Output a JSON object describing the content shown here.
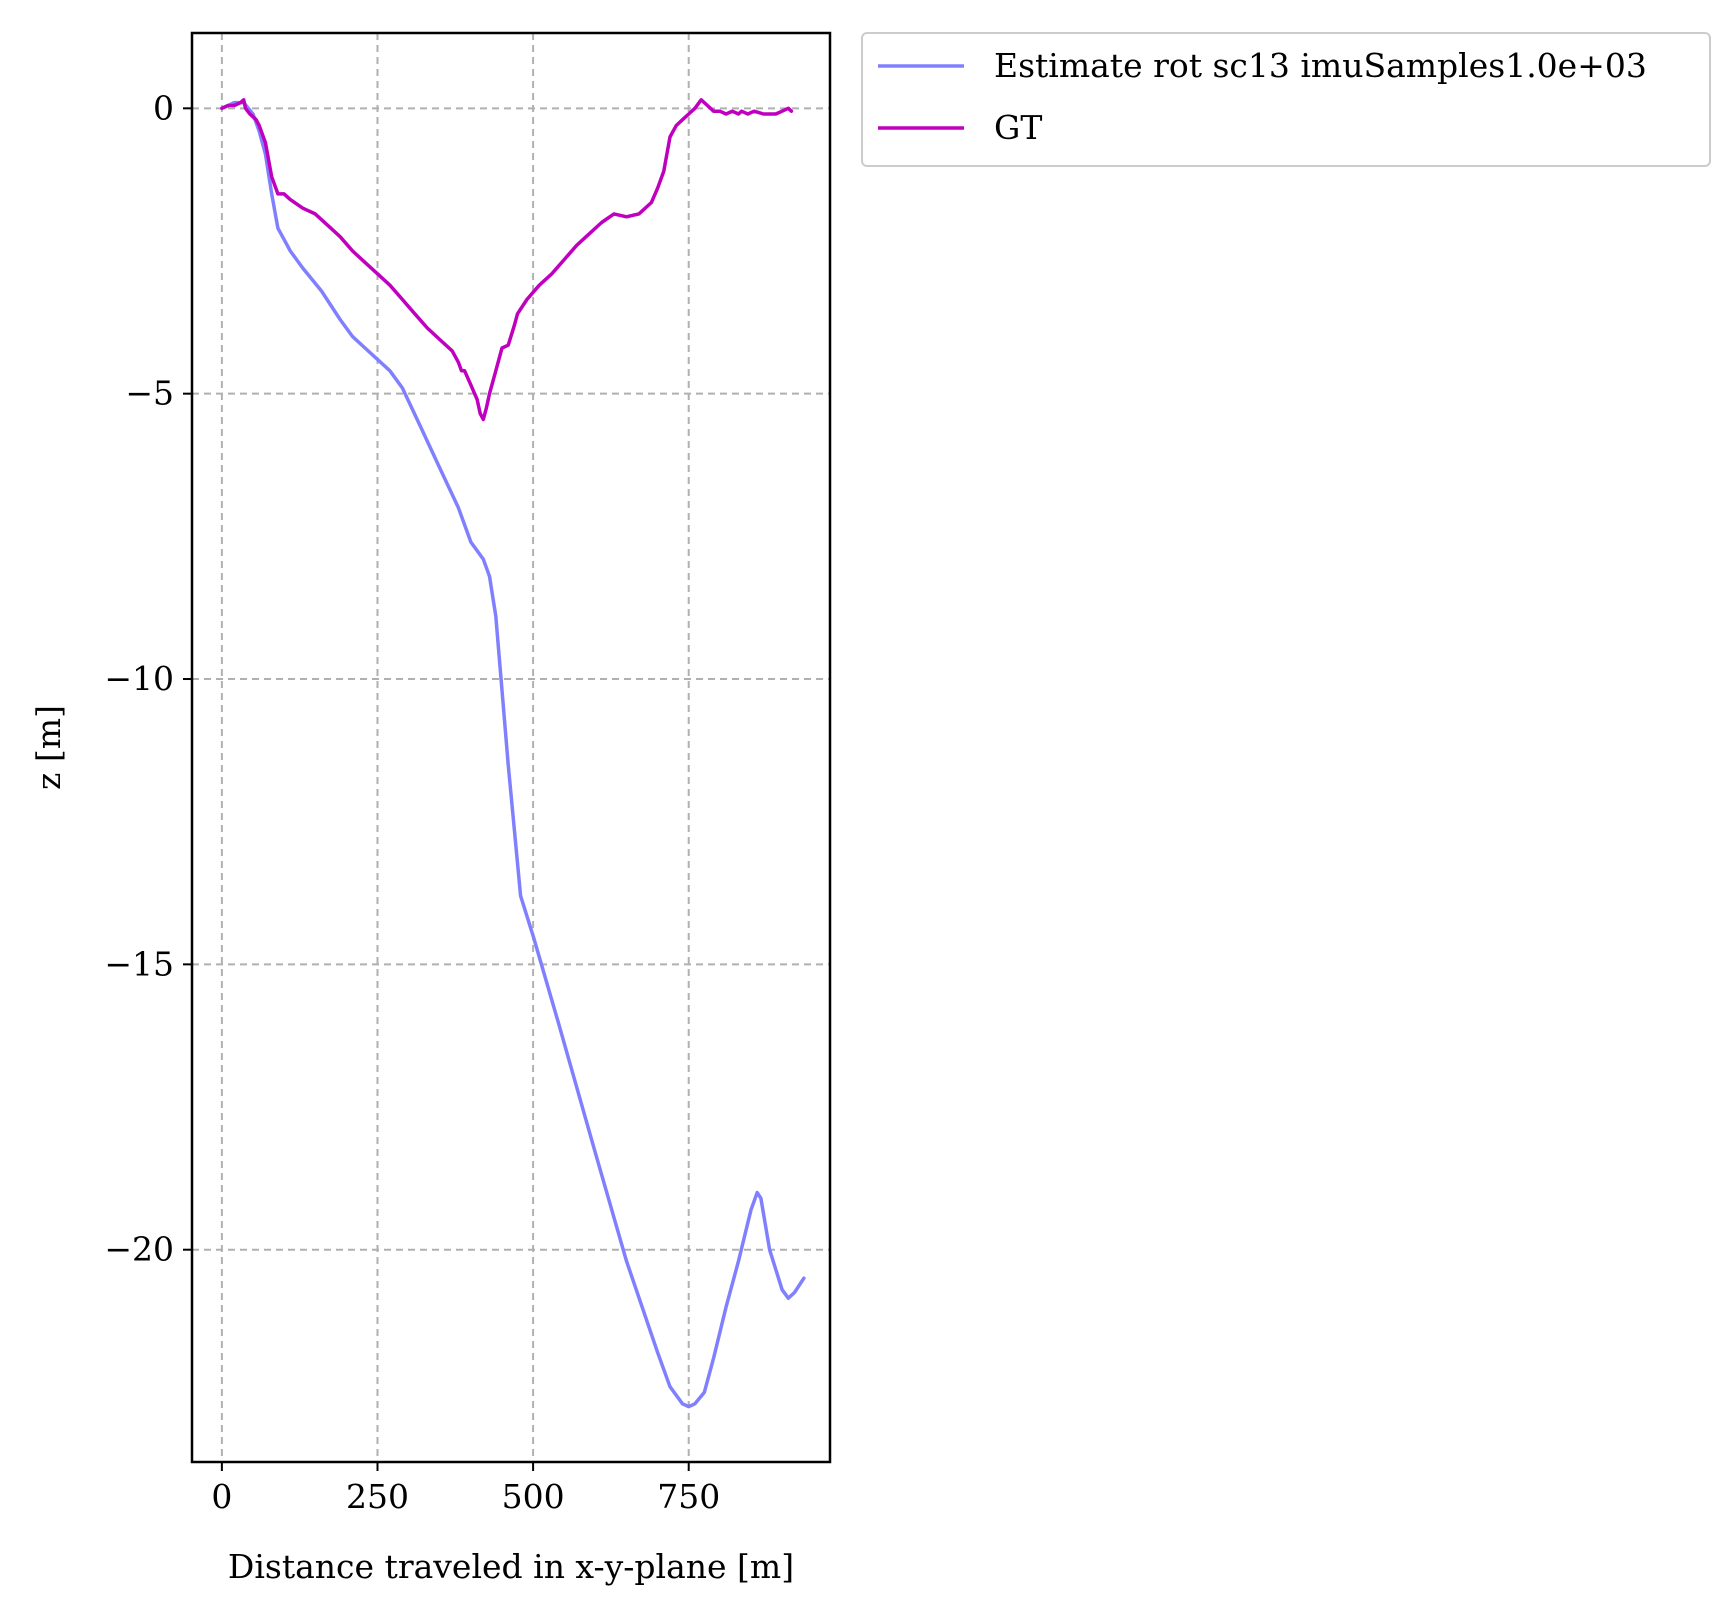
{
  "chart_data": {
    "type": "line",
    "title": "",
    "xlabel": "Distance traveled in x-y-plane [m]",
    "ylabel": "z [m]",
    "xlim": [
      -48,
      977
    ],
    "ylim": [
      -23.72,
      1.32
    ],
    "xticks": [
      0,
      250,
      500,
      750
    ],
    "xtick_labels": [
      "0",
      "250",
      "500",
      "750"
    ],
    "yticks": [
      0,
      -5,
      -10,
      -15,
      -20
    ],
    "ytick_labels": [
      "0",
      "−5",
      "−10",
      "−15",
      "−20"
    ],
    "grid": true,
    "legend_placement": "outside top-right",
    "series": [
      {
        "name": "Estimate rot sc13 imuSamples1.0e+03",
        "color": "#8080ff",
        "x": [
          0,
          20,
          35,
          50,
          60,
          70,
          80,
          90,
          100,
          110,
          130,
          160,
          190,
          210,
          230,
          250,
          270,
          290,
          320,
          350,
          380,
          400,
          420,
          430,
          440,
          460,
          480,
          500,
          540,
          600,
          650,
          700,
          720,
          740,
          750,
          760,
          775,
          790,
          810,
          830,
          850,
          860,
          866,
          880,
          900,
          910,
          920,
          935
        ],
        "y": [
          0,
          0.1,
          0.1,
          -0.1,
          -0.4,
          -0.8,
          -1.5,
          -2.1,
          -2.3,
          -2.5,
          -2.8,
          -3.2,
          -3.7,
          -4.0,
          -4.2,
          -4.4,
          -4.6,
          -4.9,
          -5.6,
          -6.3,
          -7.0,
          -7.6,
          -7.9,
          -8.2,
          -8.9,
          -11.5,
          -13.8,
          -14.5,
          -16.0,
          -18.3,
          -20.2,
          -21.8,
          -22.4,
          -22.7,
          -22.75,
          -22.7,
          -22.5,
          -21.9,
          -21.0,
          -20.2,
          -19.3,
          -19.0,
          -19.1,
          -20.0,
          -20.7,
          -20.85,
          -20.75,
          -20.5
        ]
      },
      {
        "name": "GT",
        "color": "#bf00bf",
        "x": [
          0,
          10,
          20,
          30,
          35,
          38,
          45,
          55,
          60,
          70,
          80,
          90,
          100,
          110,
          130,
          150,
          170,
          190,
          210,
          230,
          250,
          270,
          290,
          310,
          330,
          350,
          370,
          380,
          385,
          390,
          400,
          410,
          415,
          420,
          425,
          430,
          440,
          450,
          460,
          470,
          475,
          490,
          510,
          530,
          550,
          570,
          590,
          610,
          630,
          650,
          670,
          690,
          700,
          710,
          720,
          730,
          740,
          750,
          760,
          770,
          780,
          790,
          800,
          810,
          820,
          830,
          835,
          845,
          855,
          870,
          890,
          900,
          910,
          915
        ],
        "y": [
          0,
          0.05,
          0.05,
          0.1,
          0.15,
          0,
          -0.1,
          -0.2,
          -0.3,
          -0.6,
          -1.2,
          -1.5,
          -1.5,
          -1.6,
          -1.75,
          -1.85,
          -2.05,
          -2.25,
          -2.5,
          -2.7,
          -2.9,
          -3.1,
          -3.35,
          -3.6,
          -3.85,
          -4.05,
          -4.25,
          -4.45,
          -4.6,
          -4.6,
          -4.85,
          -5.1,
          -5.35,
          -5.45,
          -5.25,
          -5.0,
          -4.6,
          -4.2,
          -4.15,
          -3.8,
          -3.6,
          -3.35,
          -3.1,
          -2.9,
          -2.65,
          -2.4,
          -2.2,
          -2.0,
          -1.85,
          -1.9,
          -1.85,
          -1.65,
          -1.4,
          -1.1,
          -0.5,
          -0.3,
          -0.2,
          -0.1,
          0,
          0.15,
          0.05,
          -0.05,
          -0.05,
          -0.1,
          -0.05,
          -0.1,
          -0.05,
          -0.1,
          -0.05,
          -0.1,
          -0.1,
          -0.05,
          0,
          -0.05
        ]
      }
    ]
  }
}
